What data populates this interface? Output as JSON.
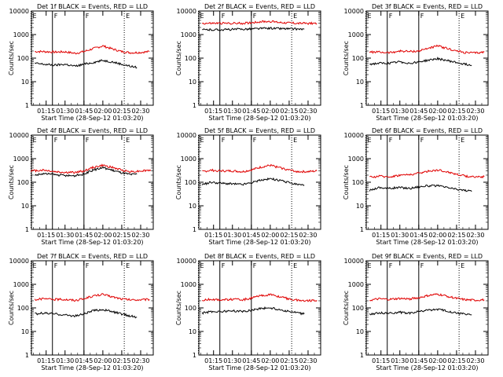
{
  "figure": {
    "background": "#ffffff",
    "colors": {
      "events": "#000000",
      "lld": "#e00000"
    }
  },
  "chart_data": [
    {
      "type": "line",
      "title": "Det 1f BLACK = Events, RED = LLD",
      "xlabel": "Start Time (28-Sep-12 01:03:20)",
      "ylabel": "Counts/sec",
      "x_ticks": [
        "01:15",
        "01:30",
        "01:45",
        "02:00",
        "02:15",
        "02:30"
      ],
      "y_ticks": [
        "1",
        "10",
        "100",
        "1000",
        "10000"
      ],
      "yscale": "log",
      "ylim": [
        1,
        10000
      ],
      "x_range": [
        "01:03:20",
        "02:40"
      ],
      "markers": [
        {
          "time": "01:03",
          "label": "E"
        },
        {
          "time": "01:20",
          "label": "F"
        },
        {
          "time": "01:45",
          "label": "F"
        },
        {
          "time": "02:17",
          "label": "E"
        }
      ],
      "series": [
        {
          "color": "#e00000",
          "x": [
            "01:06",
            "01:13",
            "01:22",
            "01:30",
            "01:38",
            "01:45",
            "01:52",
            "02:00",
            "02:07",
            "02:15",
            "02:22",
            "02:30",
            "02:37"
          ],
          "values": [
            190,
            190,
            180,
            185,
            160,
            190,
            250,
            330,
            250,
            190,
            170,
            175,
            190
          ]
        },
        {
          "color": "#000000",
          "x": [
            "01:06",
            "01:13",
            "01:22",
            "01:30",
            "01:38",
            "01:45",
            "01:52",
            "02:00",
            "02:07",
            "02:15",
            "02:22",
            "02:27"
          ],
          "values": [
            60,
            55,
            50,
            55,
            45,
            55,
            65,
            80,
            70,
            55,
            45,
            40
          ]
        }
      ]
    },
    {
      "type": "line",
      "title": "Det 2f BLACK = Events, RED = LLD",
      "xlabel": "Start Time (28-Sep-12 01:03:20)",
      "ylabel": "Counts/sec",
      "x_ticks": [
        "01:15",
        "01:30",
        "01:45",
        "02:00",
        "02:15",
        "02:30"
      ],
      "y_ticks": [
        "1",
        "10",
        "100",
        "1000",
        "10000"
      ],
      "yscale": "log",
      "ylim": [
        1,
        10000
      ],
      "x_range": [
        "01:03:20",
        "02:40"
      ],
      "markers": [
        {
          "time": "01:03",
          "label": "E"
        },
        {
          "time": "01:20",
          "label": "F"
        },
        {
          "time": "01:45",
          "label": "F"
        },
        {
          "time": "02:17",
          "label": "E"
        }
      ],
      "series": [
        {
          "color": "#e00000",
          "x": [
            "01:06",
            "01:22",
            "01:38",
            "01:45",
            "01:52",
            "02:00",
            "02:07",
            "02:22",
            "02:37"
          ],
          "values": [
            3000,
            3000,
            3000,
            3200,
            3500,
            3600,
            3300,
            3000,
            3000
          ]
        },
        {
          "color": "#000000",
          "x": [
            "01:06",
            "01:22",
            "01:38",
            "01:45",
            "01:52",
            "02:00",
            "02:07",
            "02:22",
            "02:27"
          ],
          "values": [
            1600,
            1600,
            1700,
            1750,
            1800,
            1850,
            1800,
            1700,
            1700
          ]
        }
      ]
    },
    {
      "type": "line",
      "title": "Det 3f BLACK = Events, RED = LLD",
      "xlabel": "Start Time (28-Sep-12 01:03:20)",
      "ylabel": "Counts/sec",
      "x_ticks": [
        "01:15",
        "01:30",
        "01:45",
        "02:00",
        "02:15",
        "02:30"
      ],
      "y_ticks": [
        "1",
        "10",
        "100",
        "1000",
        "10000"
      ],
      "yscale": "log",
      "ylim": [
        1,
        10000
      ],
      "x_range": [
        "01:03:20",
        "02:40"
      ],
      "markers": [
        {
          "time": "01:03",
          "label": "E"
        },
        {
          "time": "01:20",
          "label": "F"
        },
        {
          "time": "01:45",
          "label": "F"
        },
        {
          "time": "02:17",
          "label": "E"
        }
      ],
      "series": [
        {
          "color": "#e00000",
          "x": [
            "01:06",
            "01:13",
            "01:22",
            "01:30",
            "01:38",
            "01:45",
            "01:52",
            "02:00",
            "02:07",
            "02:15",
            "02:22",
            "02:30",
            "02:37"
          ],
          "values": [
            180,
            180,
            170,
            200,
            190,
            200,
            260,
            330,
            260,
            200,
            170,
            165,
            180
          ]
        },
        {
          "color": "#000000",
          "x": [
            "01:06",
            "01:13",
            "01:22",
            "01:30",
            "01:38",
            "01:45",
            "01:52",
            "02:00",
            "02:07",
            "02:15",
            "02:22",
            "02:27"
          ],
          "values": [
            55,
            60,
            60,
            70,
            60,
            70,
            80,
            95,
            80,
            65,
            55,
            50
          ]
        }
      ]
    },
    {
      "type": "line",
      "title": "Det 4f BLACK = Events, RED = LLD",
      "xlabel": "Start Time (28-Sep-12 01:03:20)",
      "ylabel": "Counts/sec",
      "x_ticks": [
        "01:15",
        "01:30",
        "01:45",
        "02:00",
        "02:15",
        "02:30"
      ],
      "y_ticks": [
        "1",
        "10",
        "100",
        "1000",
        "10000"
      ],
      "yscale": "log",
      "ylim": [
        1,
        10000
      ],
      "x_range": [
        "01:03:20",
        "02:40"
      ],
      "markers": [
        {
          "time": "01:03",
          "label": "E"
        },
        {
          "time": "01:20",
          "label": "F"
        },
        {
          "time": "01:45",
          "label": "F"
        },
        {
          "time": "02:17",
          "label": "E"
        }
      ],
      "series": [
        {
          "color": "#e00000",
          "x": [
            "01:03",
            "01:13",
            "01:22",
            "01:30",
            "01:38",
            "01:45",
            "01:52",
            "02:00",
            "02:07",
            "02:15",
            "02:22",
            "02:30",
            "02:38"
          ],
          "values": [
            300,
            330,
            280,
            260,
            260,
            300,
            420,
            520,
            430,
            330,
            280,
            300,
            330
          ]
        },
        {
          "color": "#000000",
          "x": [
            "01:06",
            "01:13",
            "01:22",
            "01:30",
            "01:38",
            "01:45",
            "01:52",
            "02:00",
            "02:07",
            "02:15",
            "02:22",
            "02:27"
          ],
          "values": [
            200,
            230,
            210,
            190,
            190,
            220,
            320,
            420,
            330,
            250,
            210,
            220
          ]
        }
      ]
    },
    {
      "type": "line",
      "title": "Det 5f BLACK = Events, RED = LLD",
      "xlabel": "Start Time (28-Sep-12 01:03:20)",
      "ylabel": "Counts/sec",
      "x_ticks": [
        "01:15",
        "01:30",
        "01:45",
        "02:00",
        "02:15",
        "02:30"
      ],
      "y_ticks": [
        "1",
        "10",
        "100",
        "1000",
        "10000"
      ],
      "yscale": "log",
      "ylim": [
        1,
        10000
      ],
      "x_range": [
        "01:03:20",
        "02:40"
      ],
      "markers": [
        {
          "time": "01:03",
          "label": "E"
        },
        {
          "time": "01:20",
          "label": "F"
        },
        {
          "time": "01:45",
          "label": "F"
        },
        {
          "time": "02:17",
          "label": "E"
        }
      ],
      "series": [
        {
          "color": "#e00000",
          "x": [
            "01:06",
            "01:13",
            "01:22",
            "01:30",
            "01:38",
            "01:45",
            "01:52",
            "02:00",
            "02:07",
            "02:15",
            "02:22",
            "02:30",
            "02:37"
          ],
          "values": [
            280,
            320,
            300,
            300,
            280,
            330,
            430,
            520,
            420,
            330,
            280,
            280,
            300
          ]
        },
        {
          "color": "#000000",
          "x": [
            "01:06",
            "01:13",
            "01:22",
            "01:30",
            "01:38",
            "01:45",
            "01:52",
            "02:00",
            "02:07",
            "02:15",
            "02:22",
            "02:27"
          ],
          "values": [
            80,
            100,
            90,
            85,
            80,
            95,
            120,
            140,
            120,
            95,
            80,
            75
          ]
        }
      ]
    },
    {
      "type": "line",
      "title": "Det 6f BLACK = Events, RED = LLD",
      "xlabel": "Start Time (28-Sep-12 01:03:20)",
      "ylabel": "Counts/sec",
      "x_ticks": [
        "01:15",
        "01:30",
        "01:45",
        "02:00",
        "02:15",
        "02:30"
      ],
      "y_ticks": [
        "1",
        "10",
        "100",
        "1000",
        "10000"
      ],
      "yscale": "log",
      "ylim": [
        1,
        10000
      ],
      "x_range": [
        "01:03:20",
        "02:40"
      ],
      "markers": [
        {
          "time": "01:03",
          "label": "E"
        },
        {
          "time": "01:20",
          "label": "F"
        },
        {
          "time": "01:45",
          "label": "F"
        },
        {
          "time": "02:17",
          "label": "E"
        }
      ],
      "series": [
        {
          "color": "#e00000",
          "x": [
            "01:06",
            "01:13",
            "01:22",
            "01:30",
            "01:38",
            "01:45",
            "01:52",
            "02:00",
            "02:07",
            "02:15",
            "02:22",
            "02:30",
            "02:37"
          ],
          "values": [
            160,
            180,
            170,
            200,
            210,
            240,
            290,
            330,
            280,
            220,
            180,
            170,
            170
          ]
        },
        {
          "color": "#000000",
          "x": [
            "01:06",
            "01:13",
            "01:22",
            "01:30",
            "01:38",
            "01:45",
            "01:52",
            "02:00",
            "02:07",
            "02:15",
            "02:22",
            "02:27"
          ],
          "values": [
            45,
            60,
            55,
            60,
            55,
            65,
            70,
            70,
            60,
            50,
            45,
            40
          ]
        }
      ]
    },
    {
      "type": "line",
      "title": "Det 7f BLACK = Events, RED = LLD",
      "xlabel": "Start Time (28-Sep-12 01:03:20)",
      "ylabel": "Counts/sec",
      "x_ticks": [
        "01:15",
        "01:30",
        "01:45",
        "02:00",
        "02:15",
        "02:30"
      ],
      "y_ticks": [
        "1",
        "10",
        "100",
        "1000",
        "10000"
      ],
      "yscale": "log",
      "ylim": [
        1,
        10000
      ],
      "x_range": [
        "01:03:20",
        "02:40"
      ],
      "markers": [
        {
          "time": "01:03",
          "label": "E"
        },
        {
          "time": "01:20",
          "label": "F"
        },
        {
          "time": "01:45",
          "label": "F"
        },
        {
          "time": "02:17",
          "label": "E"
        }
      ],
      "series": [
        {
          "color": "#e00000",
          "x": [
            "01:06",
            "01:13",
            "01:22",
            "01:30",
            "01:38",
            "01:45",
            "01:52",
            "02:00",
            "02:07",
            "02:15",
            "02:22",
            "02:30",
            "02:37"
          ],
          "values": [
            230,
            240,
            230,
            230,
            210,
            240,
            320,
            370,
            300,
            240,
            220,
            220,
            230
          ]
        },
        {
          "color": "#000000",
          "x": [
            "01:06",
            "01:13",
            "01:22",
            "01:30",
            "01:38",
            "01:45",
            "01:52",
            "02:00",
            "02:07",
            "02:15",
            "02:22",
            "02:27"
          ],
          "values": [
            55,
            60,
            55,
            50,
            45,
            55,
            75,
            85,
            70,
            55,
            45,
            40
          ]
        }
      ]
    },
    {
      "type": "line",
      "title": "Det 8f BLACK = Events, RED = LLD",
      "xlabel": "Start Time (28-Sep-12 01:03:20)",
      "ylabel": "Counts/sec",
      "x_ticks": [
        "01:15",
        "01:30",
        "01:45",
        "02:00",
        "02:15",
        "02:30"
      ],
      "y_ticks": [
        "1",
        "10",
        "100",
        "1000",
        "10000"
      ],
      "yscale": "log",
      "ylim": [
        1,
        10000
      ],
      "x_range": [
        "01:03:20",
        "02:40"
      ],
      "markers": [
        {
          "time": "01:03",
          "label": "E"
        },
        {
          "time": "01:20",
          "label": "F"
        },
        {
          "time": "01:45",
          "label": "F"
        },
        {
          "time": "02:17",
          "label": "E"
        }
      ],
      "series": [
        {
          "color": "#e00000",
          "x": [
            "01:06",
            "01:13",
            "01:22",
            "01:30",
            "01:38",
            "01:45",
            "01:52",
            "02:00",
            "02:07",
            "02:15",
            "02:22",
            "02:30",
            "02:37"
          ],
          "values": [
            210,
            230,
            220,
            230,
            220,
            260,
            320,
            370,
            300,
            240,
            210,
            200,
            210
          ]
        },
        {
          "color": "#000000",
          "x": [
            "01:06",
            "01:13",
            "01:22",
            "01:30",
            "01:38",
            "01:45",
            "01:52",
            "02:00",
            "02:07",
            "02:15",
            "02:22",
            "02:27"
          ],
          "values": [
            60,
            70,
            70,
            75,
            70,
            80,
            95,
            100,
            85,
            70,
            60,
            55
          ]
        }
      ]
    },
    {
      "type": "line",
      "title": "Det 9f BLACK = Events, RED = LLD",
      "xlabel": "Start Time (28-Sep-12 01:03:20)",
      "ylabel": "Counts/sec",
      "x_ticks": [
        "01:15",
        "01:30",
        "01:45",
        "02:00",
        "02:15",
        "02:30"
      ],
      "y_ticks": [
        "1",
        "10",
        "100",
        "1000",
        "10000"
      ],
      "yscale": "log",
      "ylim": [
        1,
        10000
      ],
      "x_range": [
        "01:03:20",
        "02:40"
      ],
      "markers": [
        {
          "time": "01:03",
          "label": "E"
        },
        {
          "time": "01:20",
          "label": "F"
        },
        {
          "time": "01:45",
          "label": "F"
        },
        {
          "time": "02:17",
          "label": "E"
        }
      ],
      "series": [
        {
          "color": "#e00000",
          "x": [
            "01:06",
            "01:13",
            "01:22",
            "01:30",
            "01:38",
            "01:45",
            "01:52",
            "02:00",
            "02:07",
            "02:15",
            "02:22",
            "02:30",
            "02:37"
          ],
          "values": [
            210,
            240,
            230,
            250,
            240,
            270,
            330,
            380,
            320,
            250,
            220,
            210,
            220
          ]
        },
        {
          "color": "#000000",
          "x": [
            "01:06",
            "01:13",
            "01:22",
            "01:30",
            "01:38",
            "01:45",
            "01:52",
            "02:00",
            "02:07",
            "02:15",
            "02:22",
            "02:27"
          ],
          "values": [
            55,
            60,
            60,
            65,
            60,
            70,
            80,
            85,
            75,
            60,
            55,
            50
          ]
        }
      ]
    }
  ]
}
